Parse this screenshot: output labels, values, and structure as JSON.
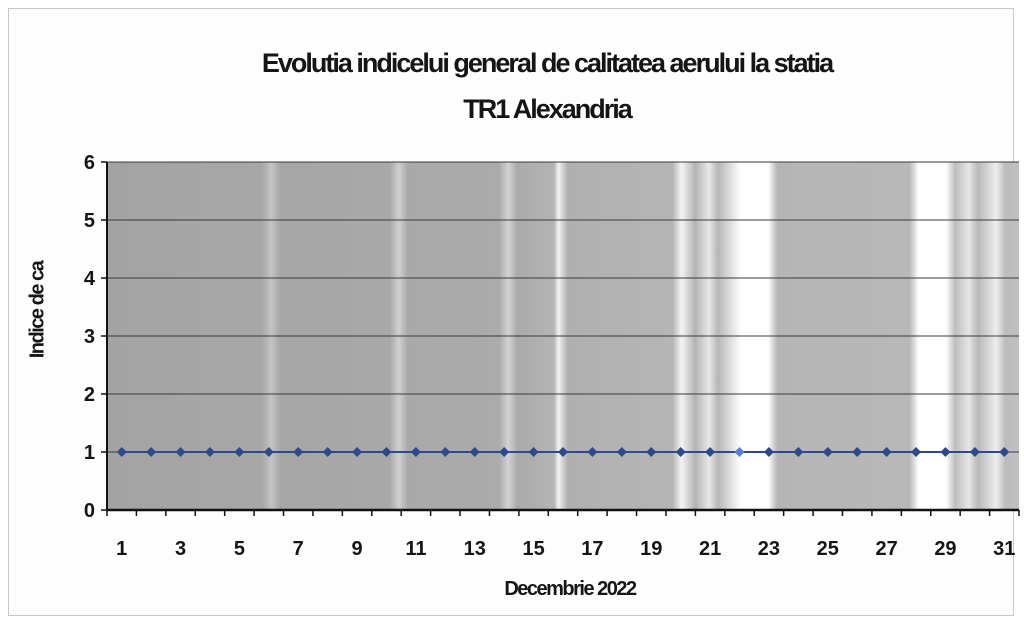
{
  "chart_data": {
    "type": "line",
    "title": "Evolutia indicelui general de calitatea aerului la statia TR1 Alexandria",
    "title_lines": [
      "Evolutia indicelui general de calitatea aerului la statia",
      "TR1 Alexandria"
    ],
    "xlabel": "Decembrie 2022",
    "ylabel": "Indice de ca",
    "x": [
      1,
      2,
      3,
      4,
      5,
      6,
      7,
      8,
      9,
      10,
      11,
      12,
      13,
      14,
      15,
      16,
      17,
      18,
      19,
      20,
      21,
      22,
      23,
      24,
      25,
      26,
      27,
      28,
      29,
      30,
      31
    ],
    "x_tick_labels": [
      "1",
      "3",
      "5",
      "7",
      "9",
      "11",
      "13",
      "15",
      "17",
      "19",
      "21",
      "23",
      "25",
      "27",
      "29",
      "31"
    ],
    "y_ticks": [
      0,
      1,
      2,
      3,
      4,
      5,
      6
    ],
    "ylim": [
      0,
      6
    ],
    "grid": true,
    "series": [
      {
        "values": [
          1,
          1,
          1,
          1,
          1,
          1,
          1,
          1,
          1,
          1,
          1,
          1,
          1,
          1,
          1,
          1,
          1,
          1,
          1,
          1,
          1,
          1,
          1,
          1,
          1,
          1,
          1,
          1,
          1,
          1,
          1
        ],
        "color": "#2f4a8c",
        "marker": "diamond"
      }
    ],
    "plot_background": "#a8a8a8",
    "legend": "none"
  }
}
